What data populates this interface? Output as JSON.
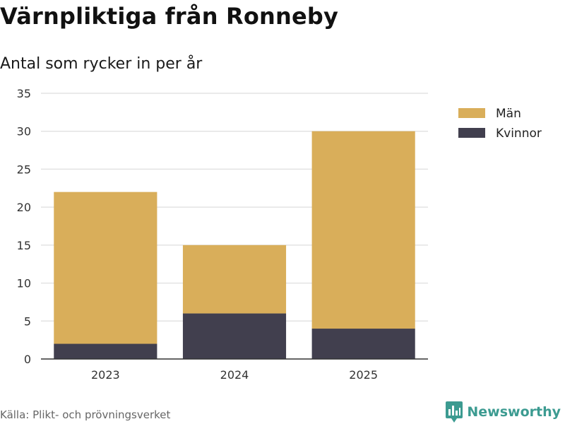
{
  "title": "Värnpliktiga från Ronneby",
  "subtitle": "Antal som rycker in per år",
  "source": "Källa: Plikt- och prövningsverket",
  "brand": {
    "name": "Newsworthy",
    "icon": "newsworthy-logo-icon",
    "color": "#3c9b91"
  },
  "chart_data": {
    "type": "bar",
    "stacked": true,
    "categories": [
      "2023",
      "2024",
      "2025"
    ],
    "series": [
      {
        "name": "Kvinnor",
        "values": [
          2,
          6,
          4
        ],
        "color": "#413f4e"
      },
      {
        "name": "Män",
        "values": [
          20,
          9,
          26
        ],
        "color": "#d9ae5a"
      }
    ],
    "legend": [
      {
        "name": "Män",
        "color": "#d9ae5a"
      },
      {
        "name": "Kvinnor",
        "color": "#413f4e"
      }
    ],
    "legend_position": "top-right",
    "ylim": [
      0,
      35
    ],
    "yticks": [
      0,
      5,
      10,
      15,
      20,
      25,
      30,
      35
    ],
    "grid": true,
    "xlabel": "",
    "ylabel": ""
  }
}
